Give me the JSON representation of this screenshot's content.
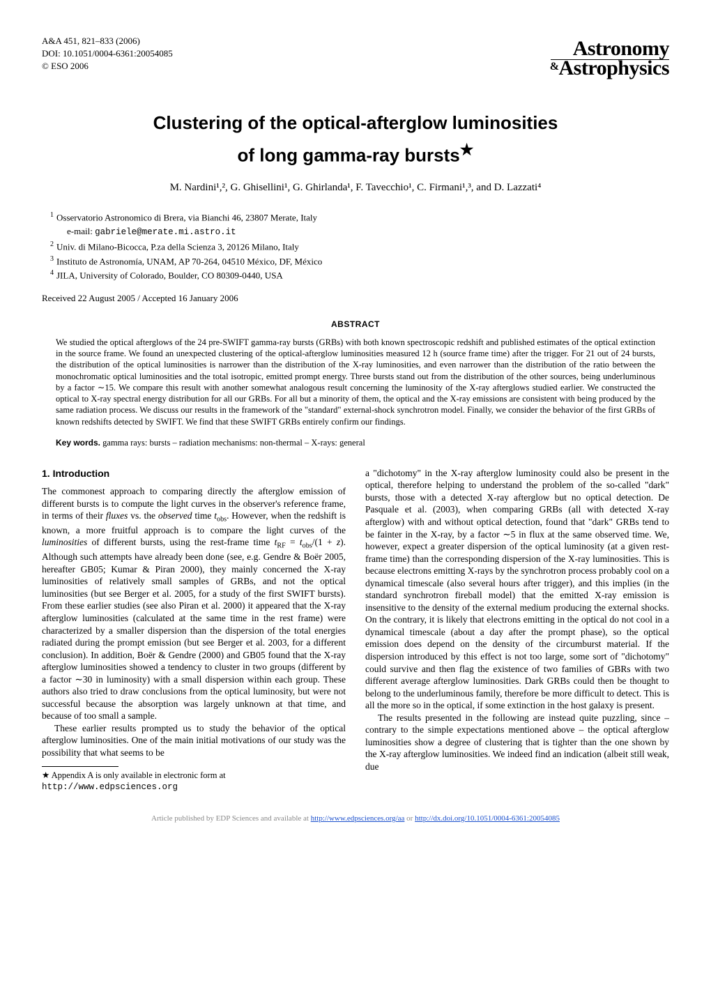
{
  "header": {
    "citation": "A&A 451, 821–833 (2006)",
    "doi": "DOI: 10.1051/0004-6361:20054085",
    "copyright": "© ESO 2006",
    "journal_top": "Astronomy",
    "journal_amp": "&",
    "journal_bottom": "Astrophysics"
  },
  "title_line1": "Clustering of the optical-afterglow luminosities",
  "title_line2": "of long gamma-ray bursts",
  "title_star": "★",
  "authors": "M. Nardini¹,², G. Ghisellini¹, G. Ghirlanda¹, F. Tavecchio¹, C. Firmani¹,³, and D. Lazzati⁴",
  "affiliations": [
    {
      "num": "1",
      "text": "Osservatorio Astronomico di Brera, via Bianchi 46, 23807 Merate, Italy"
    },
    {
      "num": "2",
      "text": "Univ. di Milano-Bicocca, P.za della Scienza 3, 20126 Milano, Italy"
    },
    {
      "num": "3",
      "text": "Instituto de Astronomía, UNAM, AP 70-264, 04510 México, DF, México"
    },
    {
      "num": "4",
      "text": "JILA, University of Colorado, Boulder, CO 80309-0440, USA"
    }
  ],
  "email_label": "e-mail: ",
  "email": "gabriele@merate.mi.astro.it",
  "received": "Received 22 August 2005 / Accepted 16 January 2006",
  "abstract_heading": "ABSTRACT",
  "abstract": "We studied the optical afterglows of the 24 pre-SWIFT gamma-ray bursts (GRBs) with both known spectroscopic redshift and published estimates of the optical extinction in the source frame. We found an unexpected clustering of the optical-afterglow luminosities measured 12 h (source frame time) after the trigger. For 21 out of 24 bursts, the distribution of the optical luminosities is narrower than the distribution of the X-ray luminosities, and even narrower than the distribution of the ratio between the monochromatic optical luminosities and the total isotropic, emitted prompt energy. Three bursts stand out from the distribution of the other sources, being underluminous by a factor ∼15. We compare this result with another somewhat analogous result concerning the luminosity of the X-ray afterglows studied earlier. We constructed the optical to X-ray spectral energy distribution for all our GRBs. For all but a minority of them, the optical and the X-ray emissions are consistent with being produced by the same radiation process. We discuss our results in the framework of the \"standard\" external-shock synchrotron model. Finally, we consider the behavior of the first GRBs of known redshifts detected by SWIFT. We find that these SWIFT GRBs entirely confirm our findings.",
  "keywords_label": "Key words.",
  "keywords": " gamma rays: bursts – radiation mechanisms: non-thermal – X-rays: general",
  "section1_heading": "1. Introduction",
  "col1_p1": "The commonest approach to comparing directly the afterglow emission of different bursts is to compute the light curves in the observer's reference frame, in terms of their fluxes vs. the observed time tobs. However, when the redshift is known, a more fruitful approach is to compare the light curves of the luminosities of different bursts, using the rest-frame time tRF = tobs/(1 + z). Although such attempts have already been done (see, e.g. Gendre & Boër 2005, hereafter GB05; Kumar & Piran 2000), they mainly concerned the X-ray luminosities of relatively small samples of GRBs, and not the optical luminosities (but see Berger et al. 2005, for a study of the first SWIFT bursts). From these earlier studies (see also Piran et al. 2000) it appeared that the X-ray afterglow luminosities (calculated at the same time in the rest frame) were characterized by a smaller dispersion than the dispersion of the total energies radiated during the prompt emission (but see Berger et al. 2003, for a different conclusion). In addition, Boër & Gendre (2000) and GB05 found that the X-ray afterglow luminosities showed a tendency to cluster in two groups (different by a factor ∼30 in luminosity) with a small dispersion within each group. These authors also tried to draw conclusions from the optical luminosity, but were not successful because the absorption was largely unknown at that time, and because of too small a sample.",
  "col1_p2": "These earlier results prompted us to study the behavior of the optical afterglow luminosities. One of the main initial motivations of our study was the possibility that what seems to be",
  "footnote_star": "★",
  "footnote_text": " Appendix A is only available in electronic form at",
  "footnote_url": "http://www.edpsciences.org",
  "col2_p1": "a \"dichotomy\" in the X-ray afterglow luminosity could also be present in the optical, therefore helping to understand the problem of the so-called \"dark\" bursts, those with a detected X-ray afterglow but no optical detection. De Pasquale et al. (2003), when comparing GRBs (all with detected X-ray afterglow) with and without optical detection, found that \"dark\" GRBs tend to be fainter in the X-ray, by a factor ∼5 in flux at the same observed time. We, however, expect a greater dispersion of the optical luminosity (at a given rest-frame time) than the corresponding dispersion of the X-ray luminosities. This is because electrons emitting X-rays by the synchrotron process probably cool on a dynamical timescale (also several hours after trigger), and this implies (in the standard synchrotron fireball model) that the emitted X-ray emission is insensitive to the density of the external medium producing the external shocks. On the contrary, it is likely that electrons emitting in the optical do not cool in a dynamical timescale (about a day after the prompt phase), so the optical emission does depend on the density of the circumburst material. If the dispersion introduced by this effect is not too large, some sort of \"dichotomy\" could survive and then flag the existence of two families of GBRs with two different average afterglow luminosities. Dark GRBs could then be thought to belong to the underluminous family, therefore be more difficult to detect. This is all the more so in the optical, if some extinction in the host galaxy is present.",
  "col2_p2": "The results presented in the following are instead quite puzzling, since – contrary to the simple expectations mentioned above – the optical afterglow luminosities show a degree of clustering that is tighter than the one shown by the X-ray afterglow luminosities. We indeed find an indication (albeit still weak, due",
  "footer": {
    "prefix": "Article published by EDP Sciences and available at ",
    "link1": "http://www.edpsciences.org/aa",
    "or": " or ",
    "link2": "http://dx.doi.org/10.1051/0004-6361:20054085"
  }
}
